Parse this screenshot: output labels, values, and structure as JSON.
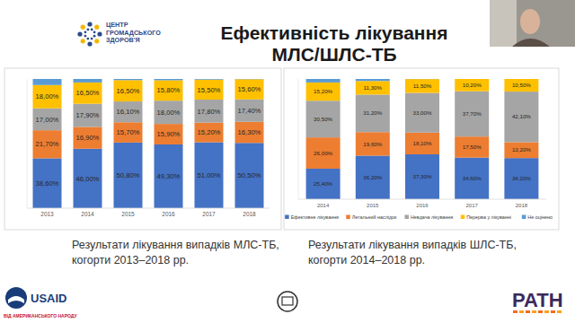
{
  "header": {
    "logo_text": "ЦЕНТР\nГРОМАДСЬКОГО\nЗДОРОВ'Я",
    "title": "Ефективність лікування\nМЛС/ШЛС-ТБ"
  },
  "chart_data": [
    {
      "type": "bar",
      "stacked": true,
      "data_labels": true,
      "tick_labels": "x",
      "grid": false,
      "subtitle": "Результати лікування випадків МЛС-ТБ,\nкогорти 2013–2018 рр.",
      "categories": [
        "2013",
        "2014",
        "2015",
        "2016",
        "2017",
        "2018"
      ],
      "ylim": [
        0,
        100
      ],
      "series": [
        {
          "color": "#4472c4",
          "values": [
            38.6,
            46.0,
            50.8,
            49.3,
            51.0,
            50.5
          ],
          "value_labels": [
            "38,60%",
            "46,00%",
            "50,80%",
            "49,30%",
            "51,00%",
            "50,50%"
          ]
        },
        {
          "color": "#ed7d31",
          "values": [
            21.7,
            16.9,
            15.7,
            15.9,
            15.2,
            16.3
          ],
          "value_labels": [
            "21,70%",
            "16,90%",
            "15,70%",
            "15,90%",
            "15,20%",
            "16,30%"
          ]
        },
        {
          "color": "#a5a5a5",
          "values": [
            17.0,
            17.9,
            16.1,
            18.0,
            17.8,
            17.4
          ],
          "value_labels": [
            "17,00%",
            "17,90%",
            "16,10%",
            "18,00%",
            "17,80%",
            "17,40%"
          ]
        },
        {
          "color": "#ffc000",
          "values": [
            18.0,
            16.5,
            16.5,
            15.8,
            15.5,
            15.6
          ],
          "value_labels": [
            "18,00%",
            "16,50%",
            "16,50%",
            "15,80%",
            "15,50%",
            "15,60%"
          ]
        },
        {
          "color": "#5b9bd5",
          "data_labels": false,
          "values": [
            4.7,
            2.7,
            0.9,
            1.0,
            0.5,
            0.2
          ]
        }
      ]
    },
    {
      "type": "bar",
      "stacked": true,
      "data_labels": true,
      "tick_labels": "x",
      "grid": false,
      "legend": "bottom",
      "subtitle": "Результати лікування випадків ШЛС-ТБ,\nкогорти 2014–2018 рр.",
      "categories": [
        "2014",
        "2015",
        "2016",
        "2017",
        "2018"
      ],
      "ylim": [
        0,
        100
      ],
      "series": [
        {
          "name": "Ефективне лікування",
          "color": "#4472c4",
          "values": [
            25.4,
            36.2,
            37.3,
            34.6,
            34.2
          ],
          "value_labels": [
            "25,40%",
            "36,20%",
            "37,30%",
            "34,60%",
            "34,20%"
          ]
        },
        {
          "name": "Летальний наслідок",
          "color": "#ed7d31",
          "values": [
            26.0,
            19.6,
            18.1,
            17.5,
            13.2
          ],
          "value_labels": [
            "26,00%",
            "19,60%",
            "18,10%",
            "17,50%",
            "13,20%"
          ]
        },
        {
          "name": "Невдача лікування",
          "color": "#a5a5a5",
          "values": [
            30.5,
            31.2,
            33.0,
            37.7,
            42.1
          ],
          "value_labels": [
            "30,50%",
            "31,20%",
            "33,00%",
            "37,70%",
            "42,10%"
          ]
        },
        {
          "name": "Перерва у лікуванні",
          "color": "#ffc000",
          "values": [
            15.2,
            11.3,
            11.5,
            10.2,
            10.5
          ],
          "value_labels": [
            "15,20%",
            "11,30%",
            "11,50%",
            "10,20%",
            "10,50%"
          ]
        },
        {
          "name": "Не оцінено",
          "color": "#5b9bd5",
          "data_labels": false,
          "values": [
            2.9,
            1.7,
            0.1,
            0.0,
            0.0
          ]
        }
      ]
    }
  ],
  "footer": {
    "left_logo": "USAID",
    "left_tagline": "ВІД АМЕРИКАНСЬКОГО НАРОДУ",
    "right_logo": "PATH"
  }
}
